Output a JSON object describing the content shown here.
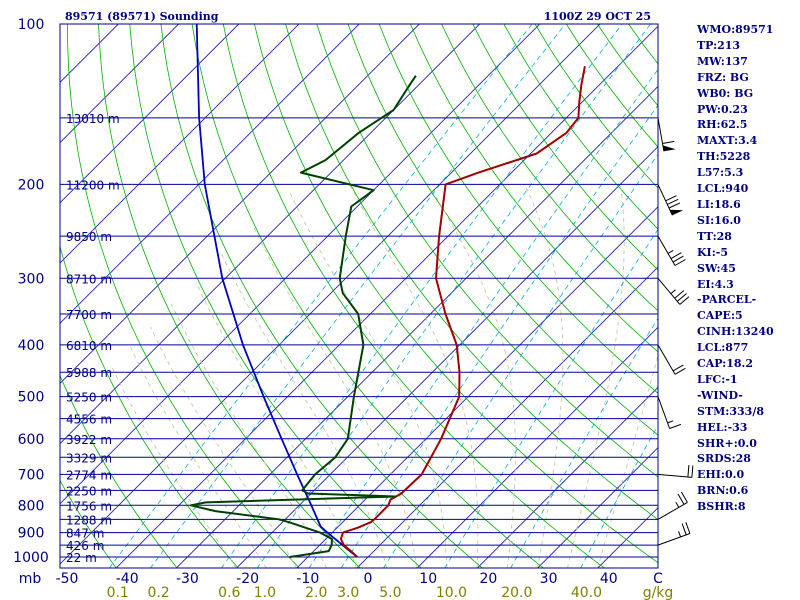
{
  "header": {
    "station": "89571 (89571) Sounding",
    "time": "1100Z 29 OCT 25"
  },
  "indices": [
    "WMO:89571",
    "TP:213",
    "MW:137",
    "FRZ: BG",
    "WB0: BG",
    "PW:0.23",
    "RH:62.5",
    "MAXT:3.4",
    "TH:5228",
    "L57:5.3",
    "LCL:940",
    "LI:18.6",
    "SI:16.0",
    "TT:28",
    "KI:-5",
    "SW:45",
    "EI:4.3",
    "-PARCEL-",
    "CAPE:5",
    "CINH:13240",
    "LCL:877",
    "CAP:18.2",
    "LFC:-1",
    "-WIND-",
    "STM:333/8",
    "HEL:-33",
    "SHR+:0.0",
    "SRDS:28",
    "EHI:0.0",
    "BRN:0.6",
    "BSHR:8"
  ],
  "colors": {
    "frame": "#000080",
    "isobar": "#0000a0",
    "isotherm": "#2020c0",
    "dry_adiabat": "#00b000",
    "moist_adiabat": "#c8c8a0",
    "mixing_ratio": "#00b0d0",
    "temperature": "#a00000",
    "dewpoint": "#004000",
    "parcel": "#0000c0",
    "axis_text": "#000080",
    "mixing_text": "#808000"
  },
  "chart_data": {
    "type": "skew-t",
    "title": "89571 (89571) Sounding",
    "valid_time": "1100Z 29 OCT 25",
    "pressure_label": "mb",
    "pressure_ticks": [
      100,
      200,
      300,
      400,
      500,
      600,
      700,
      800,
      900,
      1000
    ],
    "temperature_ticks": [
      -50,
      -40,
      -30,
      -20,
      -10,
      0,
      10,
      20,
      30,
      40
    ],
    "temperature_tick_labels": [
      "-50",
      "-40",
      "-30",
      "-20",
      "-10",
      "0",
      "10",
      "20",
      "30",
      "40"
    ],
    "mixing_ratio_labels": [
      {
        "label": "0.1",
        "value": 0.1
      },
      {
        "label": "0.2",
        "value": 0.2
      },
      {
        "label": "0.6",
        "value": 0.6
      },
      {
        "label": "1.0",
        "value": 1.0
      },
      {
        "label": "2.0",
        "value": 2.0
      },
      {
        "label": "3.0",
        "value": 3.0
      },
      {
        "label": "5.0",
        "value": 5.0
      },
      {
        "label": "10.0",
        "value": 10.0
      },
      {
        "label": "20.0",
        "value": 20.0
      },
      {
        "label": "40.0",
        "value": 40.0
      }
    ],
    "mixing_ratio_unit": "g/kg",
    "temperature_axis_end_label": "C",
    "height_labels": [
      {
        "p": 150,
        "label": "13010 m"
      },
      {
        "p": 200,
        "label": "11200 m"
      },
      {
        "p": 250,
        "label": "9850 m"
      },
      {
        "p": 300,
        "label": "8710 m"
      },
      {
        "p": 350,
        "label": "7700 m"
      },
      {
        "p": 400,
        "label": "6810 m"
      },
      {
        "p": 450,
        "label": "5988 m"
      },
      {
        "p": 500,
        "label": "5250 m"
      },
      {
        "p": 550,
        "label": "4556 m"
      },
      {
        "p": 600,
        "label": "3922 m"
      },
      {
        "p": 650,
        "label": "3329 m"
      },
      {
        "p": 700,
        "label": "2774 m"
      },
      {
        "p": 750,
        "label": "2250 m"
      },
      {
        "p": 800,
        "label": "1756 m"
      },
      {
        "p": 850,
        "label": "1288 m"
      },
      {
        "p": 900,
        "label": "847 m"
      },
      {
        "p": 950,
        "label": "426 m"
      },
      {
        "p": 1000,
        "label": "22 m"
      }
    ],
    "temperature_profile": [
      {
        "p": 1000,
        "t": -1.8
      },
      {
        "p": 975,
        "t": -3.8
      },
      {
        "p": 950,
        "t": -6.0
      },
      {
        "p": 925,
        "t": -7.5
      },
      {
        "p": 900,
        "t": -8.2
      },
      {
        "p": 880,
        "t": -6.5
      },
      {
        "p": 860,
        "t": -5.3
      },
      {
        "p": 850,
        "t": -5.2
      },
      {
        "p": 800,
        "t": -5.2
      },
      {
        "p": 780,
        "t": -5.8
      },
      {
        "p": 760,
        "t": -5.0
      },
      {
        "p": 700,
        "t": -4.8
      },
      {
        "p": 600,
        "t": -7.5
      },
      {
        "p": 500,
        "t": -11.5
      },
      {
        "p": 450,
        "t": -15.5
      },
      {
        "p": 400,
        "t": -20.5
      },
      {
        "p": 350,
        "t": -27.5
      },
      {
        "p": 300,
        "t": -35.0
      },
      {
        "p": 250,
        "t": -41.5
      },
      {
        "p": 200,
        "t": -49.0
      },
      {
        "p": 190,
        "t": -45.5
      },
      {
        "p": 175,
        "t": -39.0
      },
      {
        "p": 160,
        "t": -37.5
      },
      {
        "p": 150,
        "t": -38.0
      },
      {
        "p": 140,
        "t": -40.5
      },
      {
        "p": 130,
        "t": -43.0
      },
      {
        "p": 120,
        "t": -45.5
      }
    ],
    "dewpoint_profile": [
      {
        "p": 1000,
        "t": -13.0
      },
      {
        "p": 975,
        "t": -7.5
      },
      {
        "p": 950,
        "t": -8.0
      },
      {
        "p": 925,
        "t": -9.0
      },
      {
        "p": 900,
        "t": -12.0
      },
      {
        "p": 860,
        "t": -19.0
      },
      {
        "p": 850,
        "t": -21.0
      },
      {
        "p": 820,
        "t": -33.0
      },
      {
        "p": 800,
        "t": -38.0
      },
      {
        "p": 790,
        "t": -36.0
      },
      {
        "p": 770,
        "t": -5.5
      },
      {
        "p": 760,
        "t": -20.5
      },
      {
        "p": 750,
        "t": -22.0
      },
      {
        "p": 700,
        "t": -22.5
      },
      {
        "p": 650,
        "t": -22.0
      },
      {
        "p": 600,
        "t": -23.0
      },
      {
        "p": 500,
        "t": -29.0
      },
      {
        "p": 400,
        "t": -36.0
      },
      {
        "p": 350,
        "t": -42.0
      },
      {
        "p": 320,
        "t": -48.0
      },
      {
        "p": 300,
        "t": -51.0
      },
      {
        "p": 250,
        "t": -57.0
      },
      {
        "p": 220,
        "t": -61.0
      },
      {
        "p": 205,
        "t": -60.0
      },
      {
        "p": 190,
        "t": -75.0
      },
      {
        "p": 180,
        "t": -73.0
      },
      {
        "p": 160,
        "t": -72.0
      },
      {
        "p": 145,
        "t": -70.0
      },
      {
        "p": 130,
        "t": -71.5
      },
      {
        "p": 125,
        "t": -72.0
      }
    ],
    "parcel_profile": [
      {
        "p": 1000,
        "t": -1.8
      },
      {
        "p": 950,
        "t": -6.2
      },
      {
        "p": 900,
        "t": -10.8
      },
      {
        "p": 877,
        "t": -12.9
      },
      {
        "p": 800,
        "t": -18.0
      },
      {
        "p": 700,
        "t": -25.5
      },
      {
        "p": 600,
        "t": -34.0
      },
      {
        "p": 500,
        "t": -44.0
      },
      {
        "p": 400,
        "t": -56.0
      },
      {
        "p": 300,
        "t": -70.5
      },
      {
        "p": 200,
        "t": -89.0
      },
      {
        "p": 150,
        "t": -101.0
      },
      {
        "p": 100,
        "t": -117.0
      }
    ],
    "wind_barbs": [
      {
        "p": 950,
        "dir": 250,
        "spd": 25
      },
      {
        "p": 850,
        "dir": 240,
        "spd": 25
      },
      {
        "p": 700,
        "dir": 275,
        "spd": 20
      },
      {
        "p": 500,
        "dir": 340,
        "spd": 15
      },
      {
        "p": 400,
        "dir": 330,
        "spd": 20
      },
      {
        "p": 300,
        "dir": 320,
        "spd": 35
      },
      {
        "p": 250,
        "dir": 330,
        "spd": 35
      },
      {
        "p": 200,
        "dir": 335,
        "spd": 80
      },
      {
        "p": 150,
        "dir": 350,
        "spd": 60
      }
    ]
  }
}
